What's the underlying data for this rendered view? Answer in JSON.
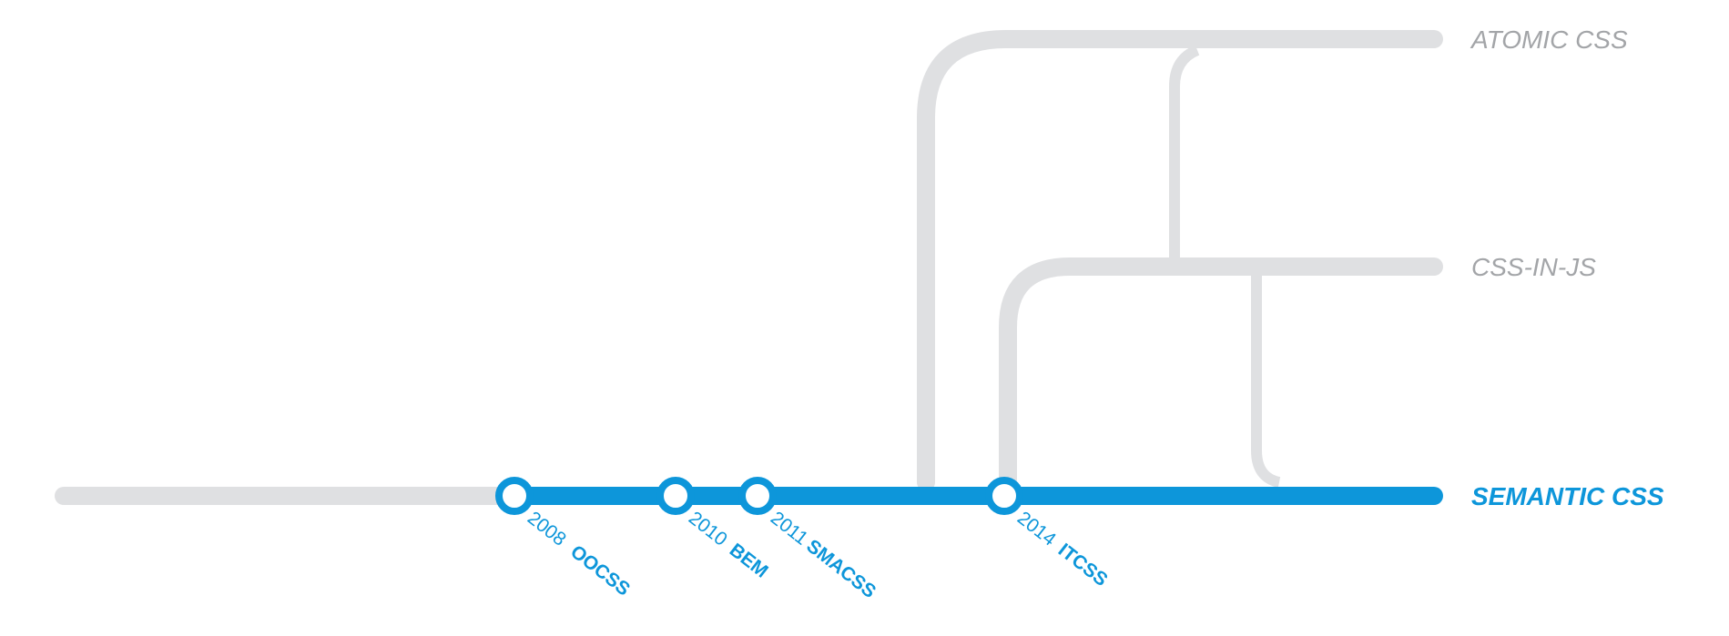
{
  "lines": [
    {
      "id": "atomic",
      "label": "ATOMIC CSS",
      "color": "#a3a5a8",
      "active": false
    },
    {
      "id": "cssinjs",
      "label": "CSS-IN-JS",
      "color": "#a3a5a8",
      "active": false
    },
    {
      "id": "semantic",
      "label": "SEMANTIC CSS",
      "color": "#0d96da",
      "active": true
    }
  ],
  "stops": [
    {
      "year": "2008",
      "name": "OOCSS"
    },
    {
      "year": "2010",
      "name": "BEM"
    },
    {
      "year": "2011",
      "name": "SMACSS"
    },
    {
      "year": "2014",
      "name": "ITCSS"
    }
  ],
  "colors": {
    "active_line": "#0d96da",
    "inactive_line": "#dfe0e2",
    "inactive_label": "#a3a5a8"
  }
}
